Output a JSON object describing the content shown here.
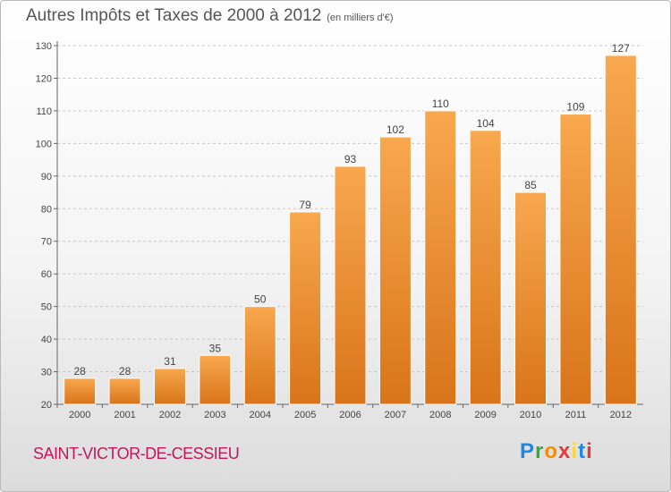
{
  "title": "Autres Impôts et Taxes de 2000 à 2012",
  "unit_note": "(en milliers d'€)",
  "commune": "SAINT-VICTOR-DE-CESSIEU",
  "logo": {
    "text": "Proxiti",
    "letter_colors": [
      "#1e88e5",
      "#43a047",
      "#fb8c00",
      "#e53935",
      "#fdd835",
      "#1e88e5",
      "#e53935"
    ]
  },
  "colors": {
    "bar_top": "#f8a84e",
    "bar_bottom": "#d9741a",
    "grid": "#c8c8c8",
    "axis_text": "#444444",
    "title": "#555555",
    "commune": "#c2185b"
  },
  "chart_data": {
    "type": "bar",
    "title": "Autres Impôts et Taxes de 2000 à 2012",
    "subtitle": "(en milliers d'€)",
    "xlabel": "",
    "ylabel": "",
    "categories": [
      "2000",
      "2001",
      "2002",
      "2003",
      "2004",
      "2005",
      "2006",
      "2007",
      "2008",
      "2009",
      "2010",
      "2011",
      "2012"
    ],
    "values": [
      28,
      28,
      31,
      35,
      50,
      79,
      93,
      102,
      110,
      104,
      85,
      109,
      127
    ],
    "data_labels": [
      "28",
      "28",
      "31",
      "35",
      "50",
      "79",
      "93",
      "102",
      "110",
      "104",
      "85",
      "109",
      "127"
    ],
    "ylim": [
      20,
      130
    ],
    "yticks": [
      20,
      30,
      40,
      50,
      60,
      70,
      80,
      90,
      100,
      110,
      120,
      130
    ],
    "grid": true,
    "legend": "none"
  }
}
